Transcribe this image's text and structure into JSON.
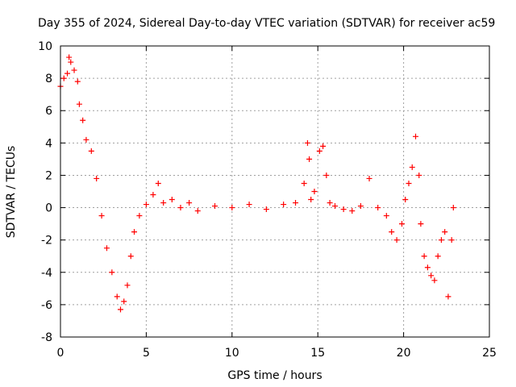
{
  "chart_data": {
    "type": "scatter",
    "marker": "plus",
    "color": "#ff0000",
    "title": "Day 355 of 2024, Sidereal Day-to-day VTEC variation (SDTVAR) for receiver ac59",
    "xlabel": "GPS time / hours",
    "ylabel": "SDTVAR / TECUs",
    "xlim": [
      0,
      25
    ],
    "ylim": [
      -8,
      10
    ],
    "xticks": [
      0,
      5,
      10,
      15,
      20,
      25
    ],
    "yticks": [
      -8,
      -6,
      -4,
      -2,
      0,
      2,
      4,
      6,
      8,
      10
    ],
    "grid": true,
    "series": [
      {
        "name": "SDTVAR",
        "x": [
          0.0,
          0.2,
          0.4,
          0.5,
          0.6,
          0.8,
          1.0,
          1.1,
          1.3,
          1.5,
          1.8,
          2.1,
          2.4,
          2.7,
          3.0,
          3.3,
          3.5,
          3.7,
          3.9,
          4.1,
          4.3,
          4.6,
          5.0,
          5.4,
          5.7,
          6.0,
          6.5,
          7.0,
          7.5,
          8.0,
          9.0,
          10.0,
          11.0,
          12.0,
          13.0,
          13.7,
          14.2,
          14.4,
          14.5,
          14.6,
          14.8,
          15.1,
          15.3,
          15.5,
          15.7,
          16.0,
          16.5,
          17.0,
          17.5,
          18.0,
          18.5,
          19.0,
          19.3,
          19.6,
          19.9,
          20.1,
          20.3,
          20.5,
          20.7,
          20.9,
          21.0,
          21.2,
          21.4,
          21.6,
          21.8,
          22.0,
          22.2,
          22.4,
          22.6,
          22.8,
          22.9
        ],
        "y": [
          7.5,
          8.0,
          8.3,
          9.3,
          9.0,
          8.5,
          7.8,
          6.4,
          5.4,
          4.2,
          3.5,
          1.8,
          -0.5,
          -2.5,
          -4.0,
          -5.5,
          -6.3,
          -5.8,
          -4.8,
          -3.0,
          -1.5,
          -0.5,
          0.2,
          0.8,
          1.5,
          0.3,
          0.5,
          0.0,
          0.3,
          -0.2,
          0.1,
          0.0,
          0.2,
          -0.1,
          0.2,
          0.3,
          1.5,
          4.0,
          3.0,
          0.5,
          1.0,
          3.5,
          3.8,
          2.0,
          0.3,
          0.1,
          -0.1,
          -0.2,
          0.1,
          1.8,
          0.0,
          -0.5,
          -1.5,
          -2.0,
          -1.0,
          0.5,
          1.5,
          2.5,
          4.4,
          2.0,
          -1.0,
          -3.0,
          -3.7,
          -4.2,
          -4.5,
          -3.0,
          -2.0,
          -1.5,
          -5.5,
          -2.0,
          0.0
        ]
      }
    ]
  }
}
